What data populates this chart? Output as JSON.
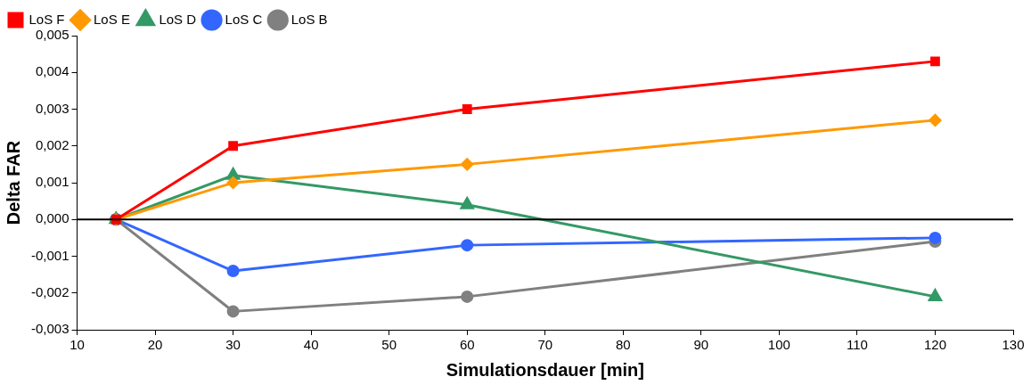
{
  "chart_data": {
    "type": "line",
    "xlabel": "Simulationsdauer [min]",
    "ylabel": "Delta FAR",
    "x": [
      15,
      30,
      60,
      120
    ],
    "series": [
      {
        "name": "LoS B",
        "color": "#808080",
        "marker": "circle",
        "values": [
          0,
          -0.0025,
          -0.0021,
          -0.0006
        ]
      },
      {
        "name": "LoS C",
        "color": "#3366ff",
        "marker": "circle",
        "values": [
          0,
          -0.0014,
          -0.0007,
          -0.0005
        ]
      },
      {
        "name": "LoS D",
        "color": "#339966",
        "marker": "triangle",
        "values": [
          0,
          0.0012,
          0.0004,
          -0.0021
        ]
      },
      {
        "name": "LoS E",
        "color": "#ff9900",
        "marker": "diamond",
        "values": [
          0,
          0.001,
          0.0015,
          0.0027
        ]
      },
      {
        "name": "LoS F",
        "color": "#ff0000",
        "marker": "square",
        "values": [
          0,
          0.002,
          0.003,
          0.0043
        ]
      }
    ],
    "xlim": [
      10,
      130
    ],
    "xticks": [
      10,
      20,
      30,
      40,
      50,
      60,
      70,
      80,
      90,
      100,
      110,
      120,
      130
    ],
    "ylim": [
      -0.003,
      0.005
    ],
    "yticks": [
      {
        "value": -0.003,
        "label": "-0,003"
      },
      {
        "value": -0.002,
        "label": "-0,002"
      },
      {
        "value": -0.001,
        "label": "-0,001"
      },
      {
        "value": 0,
        "label": "0,000"
      },
      {
        "value": 0.001,
        "label": "0,001"
      },
      {
        "value": 0.002,
        "label": "0,002"
      },
      {
        "value": 0.003,
        "label": "0,003"
      },
      {
        "value": 0.004,
        "label": "0,004"
      },
      {
        "value": 0.005,
        "label": "0,005"
      }
    ],
    "ref_lines": [
      {
        "axis": "y",
        "value": 0,
        "color": "#000000"
      }
    ],
    "legend": "top left",
    "line_style": "solid"
  }
}
